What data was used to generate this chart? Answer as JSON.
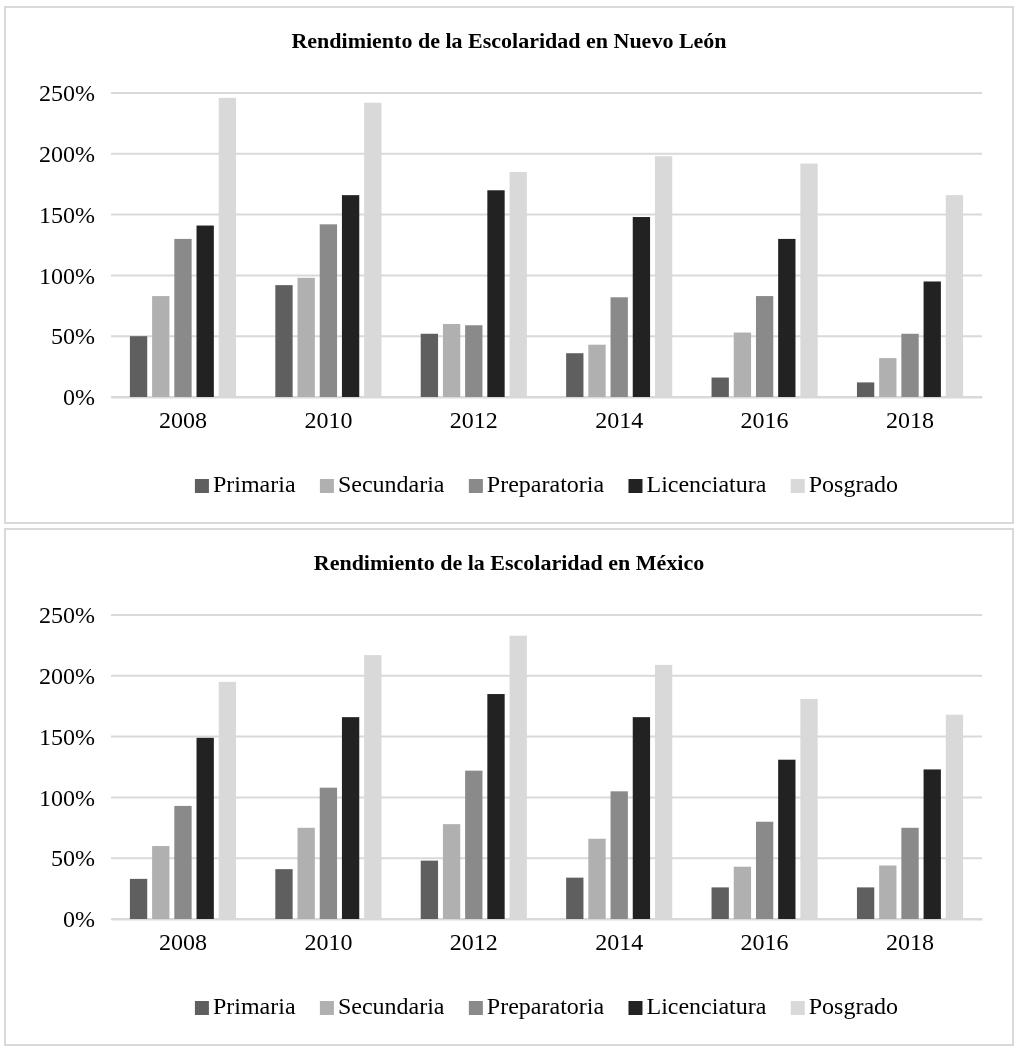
{
  "chart_data": [
    {
      "type": "bar",
      "title": "Rendimiento de la Escolaridad en Nuevo León",
      "categories": [
        "2008",
        "2010",
        "2012",
        "2014",
        "2016",
        "2018"
      ],
      "series": [
        {
          "name": "Primaria",
          "color": "#5f5f5f",
          "values": [
            50,
            92,
            52,
            36,
            16,
            12
          ]
        },
        {
          "name": "Secundaria",
          "color": "#b0b0b0",
          "values": [
            83,
            98,
            60,
            43,
            53,
            32
          ]
        },
        {
          "name": "Preparatoria",
          "color": "#8a8a8a",
          "values": [
            130,
            142,
            59,
            82,
            83,
            52
          ]
        },
        {
          "name": "Licenciatura",
          "color": "#222222",
          "values": [
            141,
            166,
            170,
            148,
            130,
            95
          ]
        },
        {
          "name": "Posgrado",
          "color": "#d9d9d9",
          "values": [
            246,
            242,
            185,
            198,
            192,
            166
          ]
        }
      ],
      "ylim": [
        0,
        250
      ],
      "yticks": [
        {
          "value": 0,
          "label": "0%"
        },
        {
          "value": 50,
          "label": "50%"
        },
        {
          "value": 100,
          "label": "100%"
        },
        {
          "value": 150,
          "label": "150%"
        },
        {
          "value": 200,
          "label": "200%"
        },
        {
          "value": 250,
          "label": "250%"
        }
      ],
      "grid": "y",
      "legend": "bottom"
    },
    {
      "type": "bar",
      "title": "Rendimiento de la Escolaridad en México",
      "categories": [
        "2008",
        "2010",
        "2012",
        "2014",
        "2016",
        "2018"
      ],
      "series": [
        {
          "name": "Primaria",
          "color": "#5f5f5f",
          "values": [
            33,
            41,
            48,
            34,
            26,
            26
          ]
        },
        {
          "name": "Secundaria",
          "color": "#b0b0b0",
          "values": [
            60,
            75,
            78,
            66,
            43,
            44
          ]
        },
        {
          "name": "Preparatoria",
          "color": "#8a8a8a",
          "values": [
            93,
            108,
            122,
            105,
            80,
            75
          ]
        },
        {
          "name": "Licenciatura",
          "color": "#222222",
          "values": [
            149,
            166,
            185,
            166,
            131,
            123
          ]
        },
        {
          "name": "Posgrado",
          "color": "#d9d9d9",
          "values": [
            195,
            217,
            233,
            209,
            181,
            168
          ]
        }
      ],
      "ylim": [
        0,
        250
      ],
      "yticks": [
        {
          "value": 0,
          "label": "0%"
        },
        {
          "value": 50,
          "label": "50%"
        },
        {
          "value": 100,
          "label": "100%"
        },
        {
          "value": 150,
          "label": "150%"
        },
        {
          "value": 200,
          "label": "200%"
        },
        {
          "value": 250,
          "label": "250%"
        }
      ],
      "grid": "y",
      "legend": "bottom"
    }
  ]
}
